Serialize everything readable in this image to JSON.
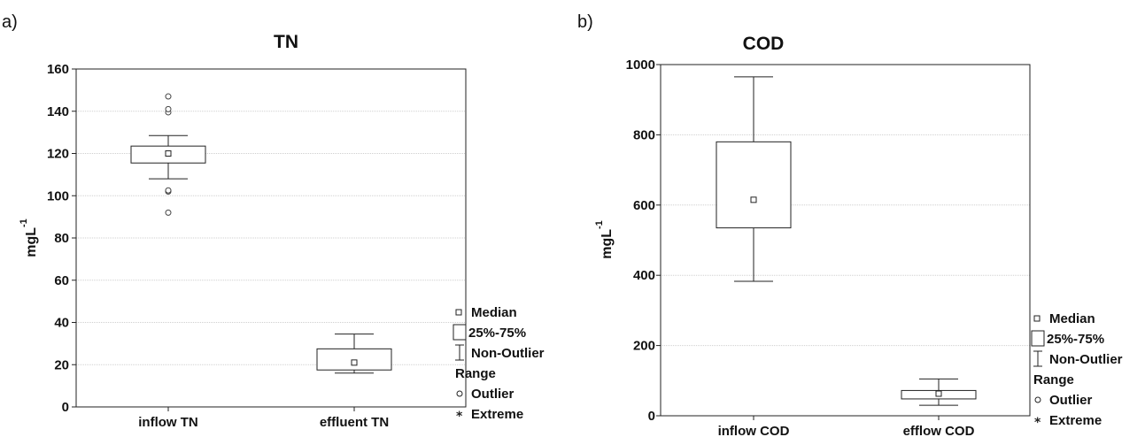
{
  "chart_data": [
    {
      "type": "box",
      "panel_label": "a)",
      "title": "TN",
      "ylabel": "mgL",
      "ylabel_superscript": "-1",
      "ylim": [
        0,
        160
      ],
      "yticks": [
        "0",
        "20",
        "40",
        "60",
        "80",
        "100",
        "120",
        "140",
        "160"
      ],
      "categories": [
        "inflow TN",
        "effluent TN"
      ],
      "boxes": [
        {
          "median": 120,
          "q1": 115.5,
          "q3": 123.5,
          "whisker_low": 108,
          "whisker_high": 128.5,
          "outliers": [
            92,
            102,
            102.5,
            139.5,
            141,
            147
          ]
        },
        {
          "median": 21,
          "q1": 17.5,
          "q3": 27.5,
          "whisker_low": 16,
          "whisker_high": 34.5,
          "outliers": []
        }
      ],
      "grid": true,
      "legend": [
        "Median",
        "25%-75%",
        "Non-Outlier",
        "Range",
        "Outlier",
        "Extreme"
      ]
    },
    {
      "type": "box",
      "panel_label": "b)",
      "title": "COD",
      "ylabel": "mgL",
      "ylabel_superscript": "-1",
      "ylim": [
        0,
        1000
      ],
      "yticks": [
        "0",
        "200",
        "400",
        "600",
        "800",
        "1000"
      ],
      "categories": [
        "inflow COD",
        "efflow COD"
      ],
      "boxes": [
        {
          "median": 615,
          "q1": 535,
          "q3": 780,
          "whisker_low": 383,
          "whisker_high": 965,
          "outliers": []
        },
        {
          "median": 63,
          "q1": 48,
          "q3": 72,
          "whisker_low": 30,
          "whisker_high": 105,
          "outliers": []
        }
      ],
      "grid": true,
      "legend": [
        "Median",
        "25%-75%",
        "Non-Outlier",
        "Range",
        "Outlier",
        "Extreme"
      ]
    }
  ]
}
